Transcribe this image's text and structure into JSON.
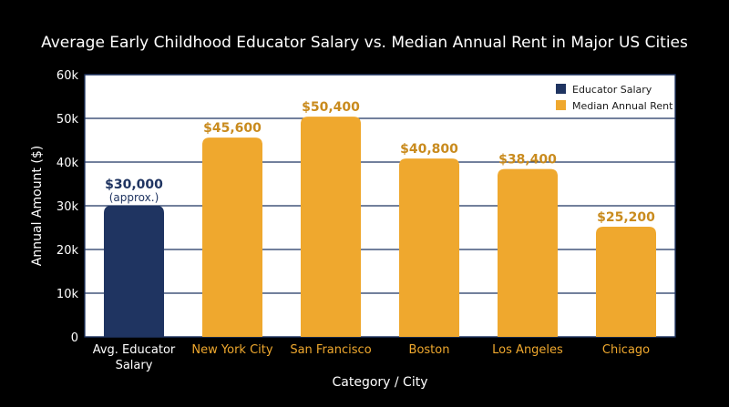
{
  "chart_data": {
    "type": "bar",
    "title": "Average Early Childhood Educator Salary vs. Median Annual Rent in Major US Cities",
    "xlabel": "Category / City",
    "ylabel": "Annual Amount ($)",
    "ylim": [
      0,
      60000
    ],
    "yticks": [
      0,
      10000,
      20000,
      30000,
      40000,
      50000,
      60000
    ],
    "ytick_labels": [
      "0",
      "10k",
      "20k",
      "30k",
      "40k",
      "50k",
      "60k"
    ],
    "grid": true,
    "legend_position": "top-right",
    "categories": [
      [
        "Avg. Educator",
        "Salary"
      ],
      [
        "New York City"
      ],
      [
        "San Francisco"
      ],
      [
        "Boston"
      ],
      [
        "Los Angeles"
      ],
      [
        "Chicago"
      ]
    ],
    "values": [
      30000,
      45600,
      50400,
      40800,
      38400,
      25200
    ],
    "value_labels": [
      "$30,000",
      "$45,600",
      "$50,400",
      "$40,800",
      "$38,400",
      "$25,200"
    ],
    "value_sublabels": [
      "(approx.)",
      "",
      "",
      "",
      "",
      ""
    ],
    "bar_series": [
      0,
      1,
      1,
      1,
      1,
      1
    ],
    "series": [
      {
        "name": "Educator Salary",
        "color": "#1f3461"
      },
      {
        "name": "Median Annual Rent",
        "color": "#efa82e"
      }
    ],
    "colors": {
      "background": "#000000",
      "plot_background": "#ffffff",
      "grid": "#1f3461",
      "text": "#ffffff",
      "axis_text": "#1a1a1a",
      "salary_label": "#1f3461",
      "rent_label": "#c98b1e"
    }
  }
}
